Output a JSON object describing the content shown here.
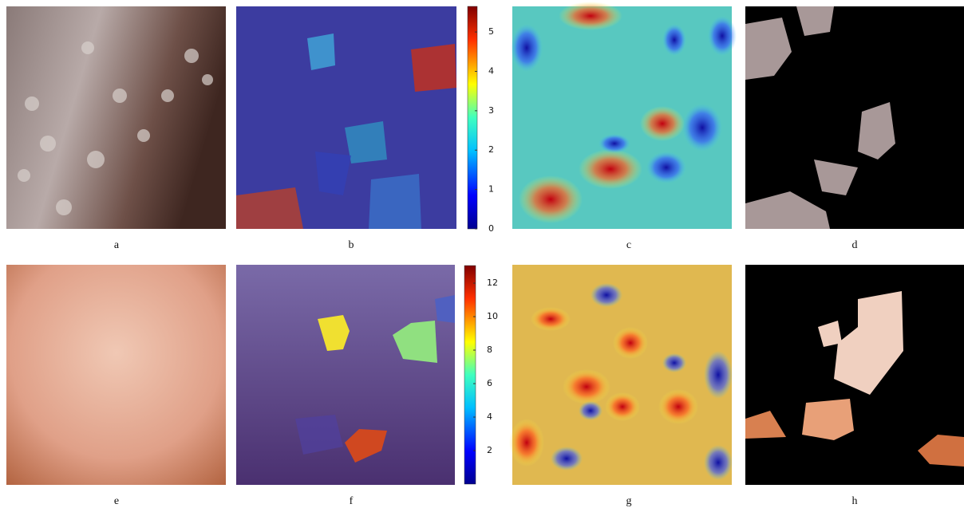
{
  "panels": [
    {
      "label": "a"
    },
    {
      "label": "b"
    },
    {
      "label": "c"
    },
    {
      "label": "d"
    },
    {
      "label": "e"
    },
    {
      "label": "f"
    },
    {
      "label": "g"
    },
    {
      "label": "h"
    }
  ],
  "colorbars": [
    {
      "range": [
        0,
        5.65
      ],
      "ticks": [
        0,
        1,
        2,
        3,
        4,
        5
      ]
    },
    {
      "range": [
        0,
        13.05
      ],
      "ticks": [
        2,
        4,
        6,
        8,
        10,
        12
      ]
    }
  ]
}
